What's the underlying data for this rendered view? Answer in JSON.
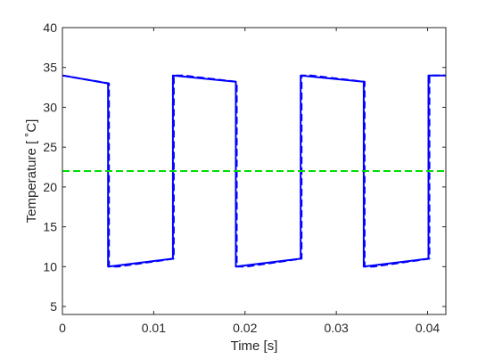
{
  "chart_data": {
    "type": "line",
    "xlabel": "Time [s]",
    "ylabel": "Temperature [ ˚C]",
    "xlim": [
      0,
      0.042
    ],
    "ylim": [
      4,
      40
    ],
    "xticks": [
      0,
      0.01,
      0.02,
      0.03,
      0.04
    ],
    "xtick_labels": [
      "0",
      "0.01",
      "0.02",
      "0.03",
      "0.04"
    ],
    "yticks": [
      5,
      10,
      15,
      20,
      25,
      30,
      35,
      40
    ],
    "ytick_labels": [
      "5",
      "10",
      "15",
      "20",
      "25",
      "30",
      "35",
      "40"
    ],
    "grid": false,
    "series": [
      {
        "style": "solid",
        "color": "#0000ff",
        "x": [
          0,
          0.005,
          0.005,
          0.0121,
          0.0121,
          0.019,
          0.019,
          0.0261,
          0.0261,
          0.033,
          0.033,
          0.0401,
          0.0401,
          0.042
        ],
        "y": [
          34,
          33,
          10,
          11,
          34,
          33.2,
          10,
          11,
          34,
          33.2,
          10,
          11,
          34,
          34
        ]
      },
      {
        "style": "dashed",
        "color": "#0000ff",
        "x": [
          0,
          0.0051,
          0.0051,
          0.0061,
          0.0122,
          0.0122,
          0.0132,
          0.0191,
          0.0191,
          0.0201,
          0.0262,
          0.0262,
          0.0272,
          0.0331,
          0.0331,
          0.0341,
          0.0402,
          0.0402,
          0.042
        ],
        "y": [
          34,
          33,
          10,
          10,
          11,
          34,
          34,
          33.2,
          10,
          10,
          11,
          34,
          34,
          33.2,
          10,
          10,
          11,
          34,
          34
        ]
      },
      {
        "style": "dashed",
        "color": "#00dd00",
        "x": [
          0,
          0.042
        ],
        "y": [
          22,
          22
        ]
      }
    ]
  }
}
